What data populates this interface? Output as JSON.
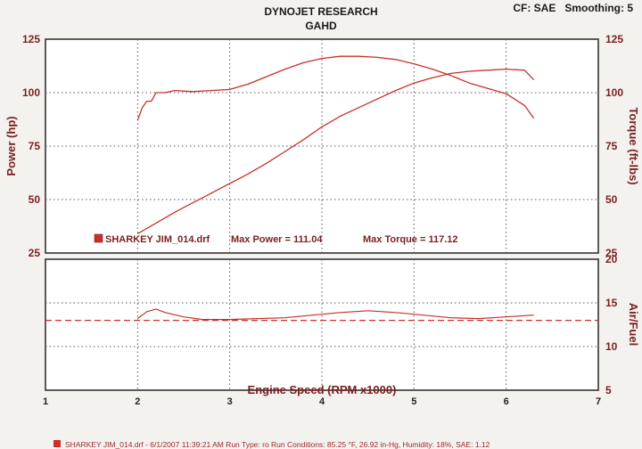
{
  "header": {
    "title": "DYNOJET RESEARCH",
    "subtitle": "GAHD",
    "settings": "CF: SAE   Smoothing: 5"
  },
  "footer": {
    "run_info": "SHARKEY JIM_014.drf - 6/1/2007 11:39:21 AM  Run Type: ro  Run Conditions: 85.25 °F, 26.92 in-Hg,  Humidity:  18%, SAE: 1.12"
  },
  "colors": {
    "trace": "#c8302a",
    "axis_text": "#7a1f1f",
    "grid": "#555555"
  },
  "chart_data": [
    {
      "type": "line",
      "xlabel": "Engine Speed (RPM x1000)",
      "ylabel": "Power (hp)",
      "y2label": "Torque (ft-lbs)",
      "xlim": [
        1,
        7
      ],
      "ylim": [
        25,
        125
      ],
      "y2lim": [
        25,
        125
      ],
      "xticks": [
        "1",
        "2",
        "3",
        "4",
        "5",
        "6",
        "7"
      ],
      "yticks": [
        "25",
        "50",
        "75",
        "100",
        "125"
      ],
      "legend": {
        "run": "SHARKEY JIM_014.drf",
        "max_power": "Max Power = 111.04",
        "max_torque": "Max Torque = 117.12"
      },
      "series": [
        {
          "values_of": "power",
          "x": [
            2.0,
            2.2,
            2.4,
            2.6,
            2.8,
            3.0,
            3.2,
            3.4,
            3.6,
            3.8,
            4.0,
            4.2,
            4.4,
            4.6,
            4.8,
            5.0,
            5.2,
            5.4,
            5.6,
            5.8,
            6.0,
            6.2,
            6.3
          ],
          "y": [
            34,
            39,
            44,
            48.5,
            53,
            57.5,
            62,
            67,
            72.5,
            78,
            84,
            89,
            93,
            97,
            101,
            104.5,
            107,
            109,
            110,
            110.5,
            111,
            110.5,
            106
          ]
        },
        {
          "values_of": "torque",
          "x": [
            2.0,
            2.05,
            2.1,
            2.15,
            2.2,
            2.3,
            2.4,
            2.6,
            2.8,
            3.0,
            3.2,
            3.4,
            3.6,
            3.8,
            4.0,
            4.2,
            4.4,
            4.6,
            4.8,
            5.0,
            5.2,
            5.4,
            5.6,
            5.8,
            6.0,
            6.2,
            6.3
          ],
          "y": [
            87,
            93,
            96,
            96,
            100,
            100,
            101,
            100.5,
            101,
            101.5,
            104,
            107.5,
            111,
            114,
            116,
            117,
            117,
            116.5,
            115.5,
            113.5,
            111,
            108,
            104.5,
            102,
            99.5,
            94,
            88
          ]
        }
      ]
    },
    {
      "type": "line",
      "ylabel": "Air/Fuel",
      "xlim": [
        1,
        7
      ],
      "ylim": [
        5,
        20
      ],
      "yticks": [
        "5",
        "10",
        "15",
        "20"
      ],
      "reference_line": 13,
      "series": [
        {
          "values_of": "air_fuel",
          "x": [
            2.0,
            2.1,
            2.2,
            2.3,
            2.5,
            2.7,
            3.0,
            3.3,
            3.6,
            3.9,
            4.2,
            4.5,
            4.8,
            5.1,
            5.4,
            5.7,
            6.0,
            6.3
          ],
          "y": [
            13.2,
            14.0,
            14.3,
            13.9,
            13.4,
            13.1,
            13.1,
            13.2,
            13.3,
            13.6,
            13.9,
            14.1,
            13.9,
            13.6,
            13.3,
            13.2,
            13.4,
            13.6
          ]
        }
      ]
    }
  ]
}
